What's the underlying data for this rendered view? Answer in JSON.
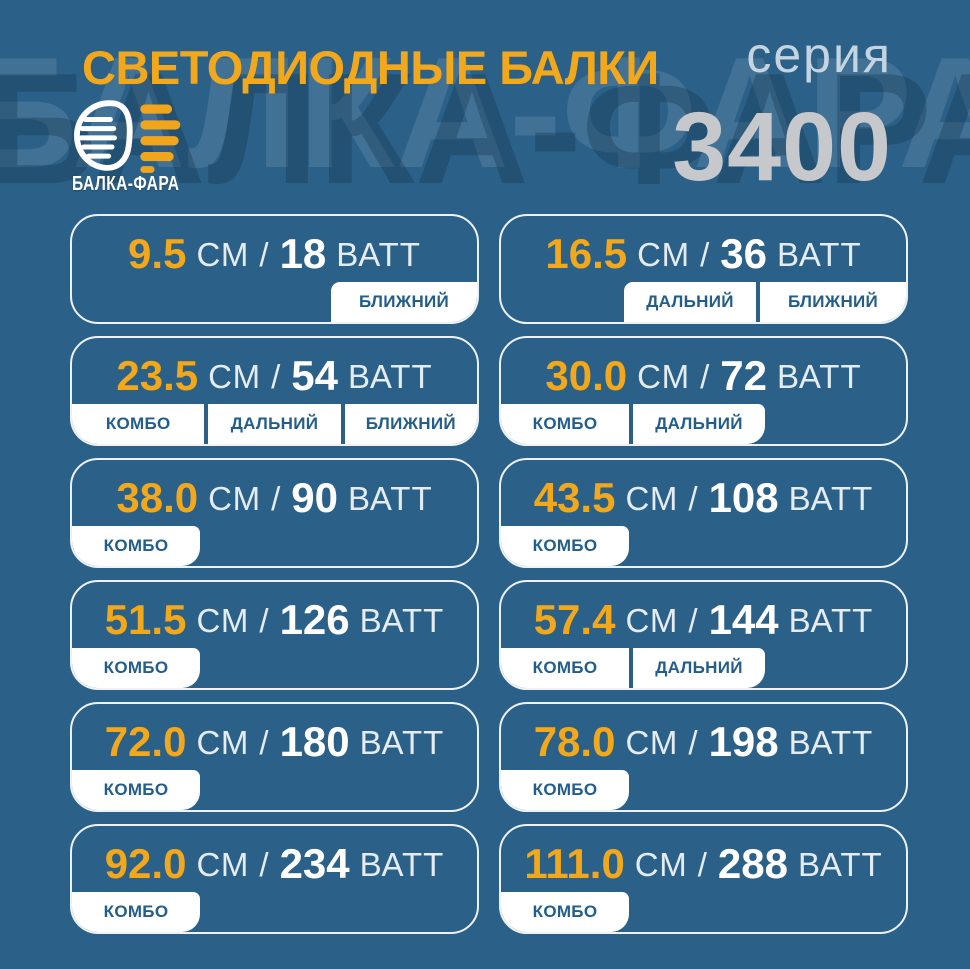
{
  "page": {
    "title": "СВЕТОДИОДНЫЕ БАЛКИ",
    "series_label": "серия",
    "series_number": "3400",
    "brand": "БАЛКА-ФАРА",
    "watermark": "БАЛКА-ФАРА"
  },
  "units": {
    "size": "СМ",
    "separator": "/",
    "power": "ВАТТ"
  },
  "colors": {
    "background": "#2B6189",
    "accent_yellow": "#F3A81B",
    "series_label": "#C4D4E1",
    "series_number": "#C6C8CB",
    "card_border": "#FFFFFF",
    "unit_text": "#E4ECF2",
    "watt_text": "#FFFFFF",
    "tag_background": "#FFFFFF",
    "tag_text": "#215E8D"
  },
  "cards": [
    {
      "size": "9.5",
      "watts": "18",
      "tags": [
        "БЛИЖНИЙ"
      ],
      "align": "right"
    },
    {
      "size": "16.5",
      "watts": "36",
      "tags": [
        "ДАЛЬНИЙ",
        "БЛИЖНИЙ"
      ],
      "align": "right"
    },
    {
      "size": "23.5",
      "watts": "54",
      "tags": [
        "КОМБО",
        "ДАЛЬНИЙ",
        "БЛИЖНИЙ"
      ],
      "align": "full"
    },
    {
      "size": "30.0",
      "watts": "72",
      "tags": [
        "КОМБО",
        "ДАЛЬНИЙ"
      ],
      "align": "left"
    },
    {
      "size": "38.0",
      "watts": "90",
      "tags": [
        "КОМБО"
      ],
      "align": "left"
    },
    {
      "size": "43.5",
      "watts": "108",
      "tags": [
        "КОМБО"
      ],
      "align": "left"
    },
    {
      "size": "51.5",
      "watts": "126",
      "tags": [
        "КОМБО"
      ],
      "align": "left"
    },
    {
      "size": "57.4",
      "watts": "144",
      "tags": [
        "КОМБО",
        "ДАЛЬНИЙ"
      ],
      "align": "left"
    },
    {
      "size": "72.0",
      "watts": "180",
      "tags": [
        "КОМБО"
      ],
      "align": "left"
    },
    {
      "size": "78.0",
      "watts": "198",
      "tags": [
        "КОМБО"
      ],
      "align": "left"
    },
    {
      "size": "92.0",
      "watts": "234",
      "tags": [
        "КОМБО"
      ],
      "align": "left"
    },
    {
      "size": "111.0",
      "watts": "288",
      "tags": [
        "КОМБО"
      ],
      "align": "left"
    }
  ]
}
